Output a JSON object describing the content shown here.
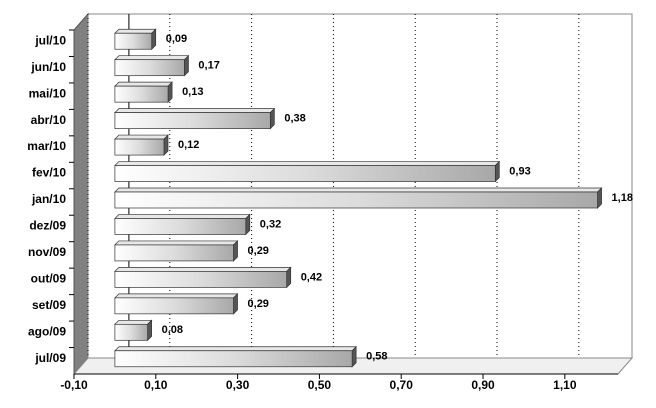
{
  "chart_data": {
    "type": "bar",
    "orientation": "horizontal",
    "categories": [
      "jul/10",
      "jun/10",
      "mai/10",
      "abr/10",
      "mar/10",
      "fev/10",
      "jan/10",
      "dez/09",
      "nov/09",
      "out/09",
      "set/09",
      "ago/09",
      "jul/09"
    ],
    "values": [
      0.09,
      0.17,
      0.13,
      0.38,
      0.12,
      0.93,
      1.18,
      0.32,
      0.29,
      0.42,
      0.29,
      0.08,
      0.58
    ],
    "value_labels": [
      "0,09",
      "0,17",
      "0,13",
      "0,38",
      "0,12",
      "0,93",
      "1,18",
      "0,32",
      "0,29",
      "0,42",
      "0,29",
      "0,08",
      "0,58"
    ],
    "color": "#c0c0c0",
    "xlim": [
      -0.1,
      1.23
    ],
    "xticks": [
      {
        "value": -0.1,
        "label": "-0,10"
      },
      {
        "value": 0.1,
        "label": "0,10"
      },
      {
        "value": 0.3,
        "label": "0,30"
      },
      {
        "value": 0.5,
        "label": "0,50"
      },
      {
        "value": 0.7,
        "label": "0,70"
      },
      {
        "value": 0.9,
        "label": "0,90"
      },
      {
        "value": 1.1,
        "label": "1,10"
      }
    ],
    "grid": true
  }
}
